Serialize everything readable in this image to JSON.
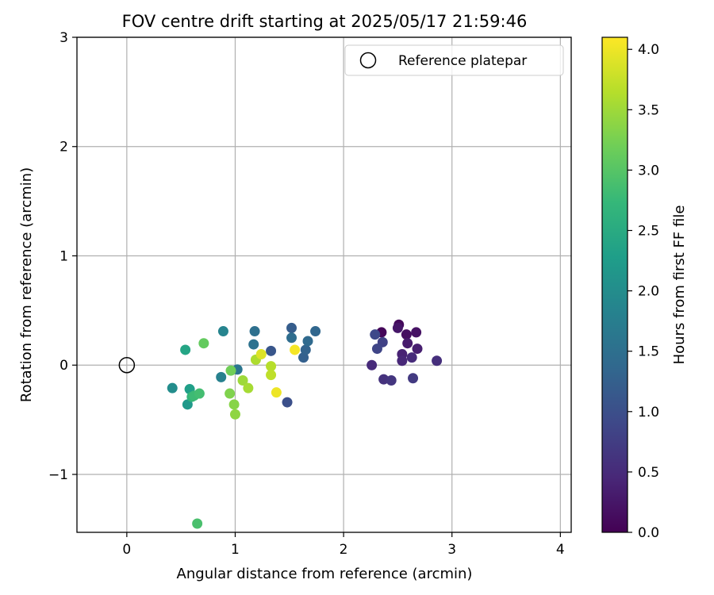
{
  "chart_data": {
    "type": "scatter",
    "title": "FOV centre drift starting at 2025/05/17 21:59:46",
    "xlabel": "Angular distance from reference (arcmin)",
    "ylabel": "Rotation from reference (arcmin)",
    "xlim": [
      -0.46,
      4.1
    ],
    "ylim": [
      -1.53,
      3.0
    ],
    "xticks": [
      0,
      1,
      2,
      3,
      4
    ],
    "yticks": [
      -1,
      0,
      1,
      2,
      3
    ],
    "xtick_labels": [
      "0",
      "1",
      "2",
      "3",
      "4"
    ],
    "ytick_labels": [
      "−1",
      "0",
      "1",
      "2",
      "3"
    ],
    "grid": true,
    "legend": {
      "position": "top-right",
      "label": "Reference platepar"
    },
    "reference_point": {
      "x": 0,
      "y": 0
    },
    "colorbar": {
      "label": "Hours from first FF file",
      "colormap": "viridis",
      "min": 0.0,
      "max": 4.1,
      "ticks": [
        0.0,
        0.5,
        1.0,
        1.5,
        2.0,
        2.5,
        3.0,
        3.5,
        4.0
      ],
      "tick_labels": [
        "0.0",
        "0.5",
        "1.0",
        "1.5",
        "2.0",
        "2.5",
        "3.0",
        "3.5",
        "4.0"
      ],
      "stops": [
        "#440154",
        "#482878",
        "#3e4989",
        "#31688e",
        "#26828e",
        "#1f9e89",
        "#35b779",
        "#6ece58",
        "#b5de2b",
        "#fde725"
      ]
    },
    "points": [
      {
        "x": 2.35,
        "y": 0.3,
        "t": 0.05
      },
      {
        "x": 2.51,
        "y": 0.37,
        "t": 0.1
      },
      {
        "x": 2.58,
        "y": 0.28,
        "t": 0.15
      },
      {
        "x": 2.67,
        "y": 0.3,
        "t": 0.2
      },
      {
        "x": 2.5,
        "y": 0.34,
        "t": 0.25
      },
      {
        "x": 2.59,
        "y": 0.2,
        "t": 0.3
      },
      {
        "x": 2.68,
        "y": 0.15,
        "t": 0.35
      },
      {
        "x": 2.54,
        "y": 0.1,
        "t": 0.4
      },
      {
        "x": 2.54,
        "y": 0.04,
        "t": 0.45
      },
      {
        "x": 2.63,
        "y": 0.07,
        "t": 0.5
      },
      {
        "x": 2.86,
        "y": 0.04,
        "t": 0.55
      },
      {
        "x": 2.37,
        "y": -0.13,
        "t": 0.6
      },
      {
        "x": 2.44,
        "y": -0.14,
        "t": 0.65
      },
      {
        "x": 2.64,
        "y": -0.12,
        "t": 0.7
      },
      {
        "x": 2.36,
        "y": 0.21,
        "t": 0.8
      },
      {
        "x": 2.31,
        "y": 0.15,
        "t": 0.85
      },
      {
        "x": 2.29,
        "y": 0.28,
        "t": 0.9
      },
      {
        "x": 2.26,
        "y": 0.0,
        "t": 0.5
      },
      {
        "x": 1.48,
        "y": -0.34,
        "t": 1.0
      },
      {
        "x": 1.33,
        "y": 0.13,
        "t": 1.1
      },
      {
        "x": 1.52,
        "y": 0.34,
        "t": 1.2
      },
      {
        "x": 1.63,
        "y": 0.07,
        "t": 1.25
      },
      {
        "x": 1.65,
        "y": 0.14,
        "t": 1.3
      },
      {
        "x": 1.74,
        "y": 0.31,
        "t": 1.35
      },
      {
        "x": 1.67,
        "y": 0.22,
        "t": 1.4
      },
      {
        "x": 1.52,
        "y": 0.25,
        "t": 1.45
      },
      {
        "x": 1.18,
        "y": 0.31,
        "t": 1.5
      },
      {
        "x": 1.17,
        "y": 0.19,
        "t": 1.55
      },
      {
        "x": 1.02,
        "y": -0.04,
        "t": 1.6
      },
      {
        "x": 0.87,
        "y": -0.11,
        "t": 1.8
      },
      {
        "x": 0.89,
        "y": 0.31,
        "t": 1.85
      },
      {
        "x": 0.42,
        "y": -0.21,
        "t": 2.0
      },
      {
        "x": 0.56,
        "y": -0.36,
        "t": 2.2
      },
      {
        "x": 0.58,
        "y": -0.22,
        "t": 2.3
      },
      {
        "x": 0.54,
        "y": 0.14,
        "t": 2.4
      },
      {
        "x": 0.6,
        "y": -0.29,
        "t": 2.7
      },
      {
        "x": 0.62,
        "y": -0.28,
        "t": 2.8
      },
      {
        "x": 0.67,
        "y": -0.26,
        "t": 2.85
      },
      {
        "x": 0.65,
        "y": -1.45,
        "t": 2.9
      },
      {
        "x": 0.71,
        "y": 0.2,
        "t": 3.1
      },
      {
        "x": 0.96,
        "y": -0.05,
        "t": 3.2
      },
      {
        "x": 0.95,
        "y": -0.26,
        "t": 3.3
      },
      {
        "x": 0.99,
        "y": -0.36,
        "t": 3.35
      },
      {
        "x": 1.0,
        "y": -0.45,
        "t": 3.4
      },
      {
        "x": 1.07,
        "y": -0.14,
        "t": 3.5
      },
      {
        "x": 1.12,
        "y": -0.21,
        "t": 3.55
      },
      {
        "x": 1.19,
        "y": 0.05,
        "t": 3.6
      },
      {
        "x": 1.33,
        "y": -0.01,
        "t": 3.65
      },
      {
        "x": 1.33,
        "y": -0.09,
        "t": 3.7
      },
      {
        "x": 1.24,
        "y": 0.1,
        "t": 3.9
      },
      {
        "x": 1.38,
        "y": -0.25,
        "t": 4.0
      },
      {
        "x": 1.55,
        "y": 0.14,
        "t": 4.05
      }
    ]
  }
}
